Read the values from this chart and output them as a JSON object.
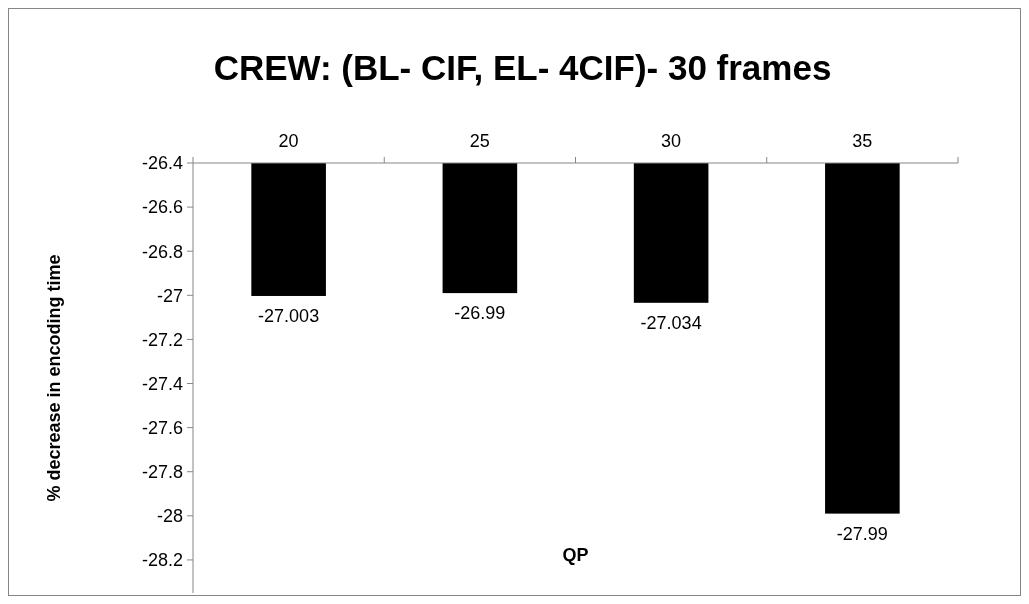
{
  "chart_data": {
    "type": "bar",
    "title": "CREW: (BL- CIF, EL- 4CIF)- 30 frames",
    "xlabel": "QP",
    "ylabel": "% decrease in encoding time",
    "categories": [
      "20",
      "25",
      "30",
      "35"
    ],
    "values": [
      -27.003,
      -26.99,
      -27.034,
      -27.99
    ],
    "color": "#000000",
    "ylim": [
      -28.35,
      -26.4
    ],
    "yticks": [
      -26.4,
      -26.6,
      -26.8,
      -27,
      -27.2,
      -27.4,
      -27.6,
      -27.8,
      -28,
      -28.2
    ],
    "data_labels": true
  }
}
